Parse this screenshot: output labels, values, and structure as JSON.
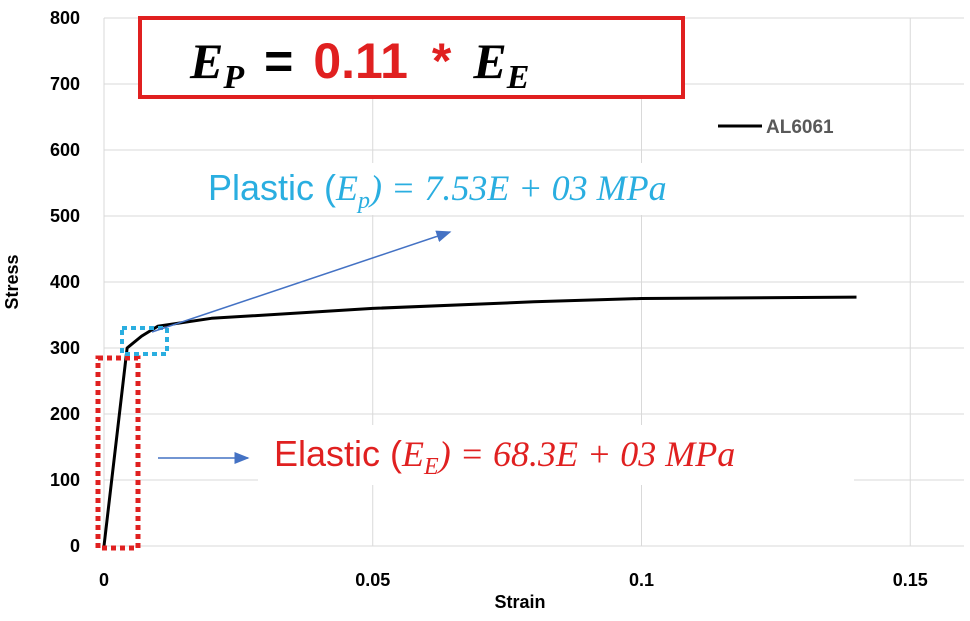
{
  "chart_data": {
    "type": "line",
    "x_label": "Strain",
    "y_label": "Stress",
    "xlim": [
      0,
      0.16
    ],
    "xticks": [
      0,
      0.05,
      0.1,
      0.15
    ],
    "ylim": [
      0,
      800
    ],
    "yticks": [
      0,
      100,
      200,
      300,
      400,
      500,
      600,
      700,
      800
    ],
    "grid": true,
    "legend": "upper right",
    "x": [
      0,
      0.0043,
      0.007,
      0.01,
      0.02,
      0.05,
      0.08,
      0.1,
      0.14
    ],
    "series": [
      {
        "name": "AL6061",
        "color": "#000000",
        "values": [
          0,
          300,
          318,
          333,
          345,
          360,
          370,
          375,
          377
        ]
      }
    ],
    "equation": {
      "lhs_symbol": "E",
      "lhs_subscript": "P",
      "equals": "=",
      "coefficient": "0.11",
      "operator": "*",
      "rhs_symbol": "E",
      "rhs_subscript": "E"
    },
    "plastic_annotation": {
      "prefix": "Plastic (",
      "symbol": "E",
      "subscript": "p",
      "suffix": ") = 7.53E + 03 MPa"
    },
    "elastic_annotation": {
      "prefix": "Elastic (",
      "symbol": "E",
      "subscript": "E",
      "suffix": ") = 68.3E + 03 MPa"
    }
  }
}
